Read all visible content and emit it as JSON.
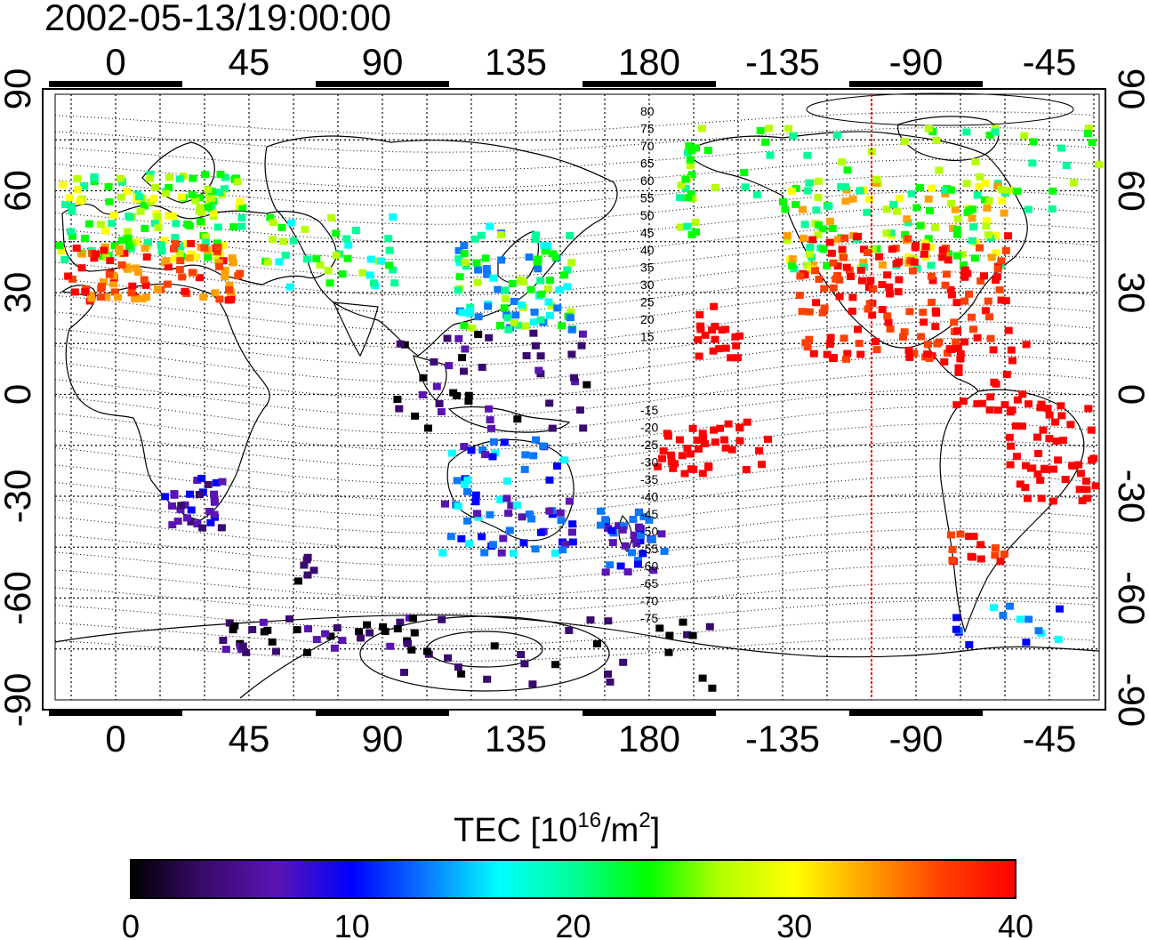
{
  "title": "2002-05-13/19:00:00",
  "top_lon_labels": [
    "0",
    "45",
    "90",
    "135",
    "180",
    "-135",
    "-90",
    "-45"
  ],
  "bottom_lon_labels": [
    "0",
    "45",
    "90",
    "135",
    "180",
    "-135",
    "-90",
    "-45"
  ],
  "left_lat_labels": [
    "90",
    "60",
    "30",
    "0",
    "-30",
    "-60",
    "-90"
  ],
  "right_lat_labels": [
    "90",
    "60",
    "30",
    "0",
    "-30",
    "-60",
    "-90"
  ],
  "contour_labels_north": [
    "80",
    "75",
    "70",
    "65",
    "60",
    "55",
    "50",
    "45",
    "40",
    "35",
    "30",
    "25",
    "20",
    "15"
  ],
  "contour_labels_south": [
    "-15",
    "-20",
    "-25",
    "-30",
    "-35",
    "-40",
    "-45",
    "-50",
    "-55",
    "-60",
    "-65",
    "-70",
    "-75"
  ],
  "colorbar": {
    "title_prefix": "TEC  [10",
    "title_exp": "16",
    "title_mid": "/m",
    "title_exp2": "2",
    "title_suffix": "]",
    "ticks": [
      "0",
      "10",
      "20",
      "30",
      "40"
    ],
    "colors": [
      "#000000",
      "#3a0a6e",
      "#5a14b4",
      "#0000ff",
      "#0a78ff",
      "#00ffff",
      "#00ff96",
      "#00ff00",
      "#b4ff00",
      "#ffff00",
      "#ffa000",
      "#ff4000",
      "#ff0000"
    ]
  },
  "highlight_meridian_lon": -105,
  "highlight_color": "#ff0000"
}
